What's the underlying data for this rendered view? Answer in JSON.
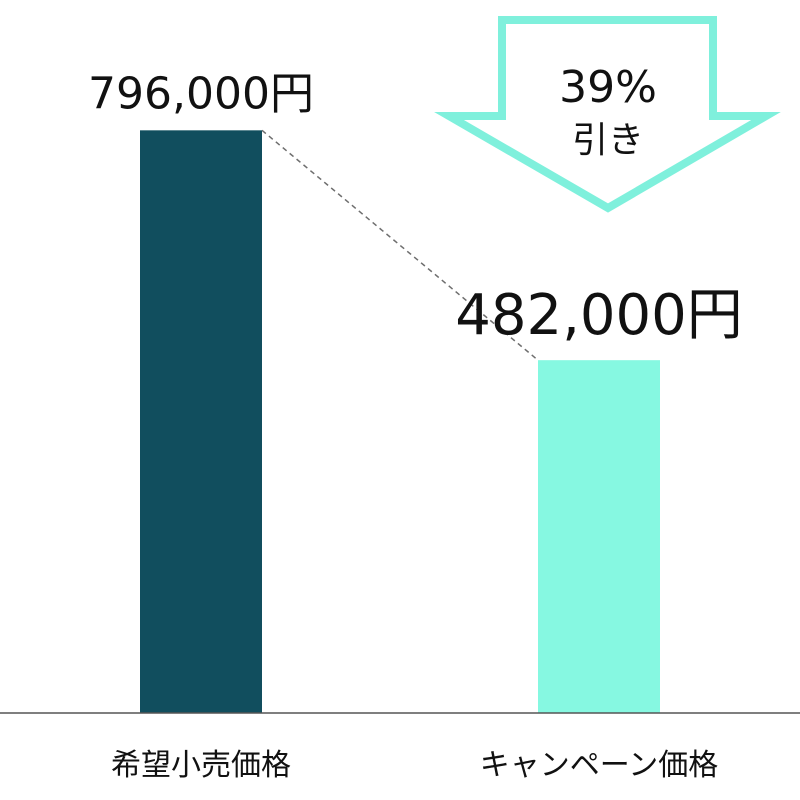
{
  "chart_data": {
    "type": "bar",
    "categories": [
      "希望小売価格",
      "キャンペーン価格"
    ],
    "values": [
      796000,
      482000
    ],
    "value_labels": [
      "796,000円",
      "482,000円"
    ],
    "ylim": [
      0,
      1000000
    ],
    "grid": false,
    "legend": "none",
    "colors": [
      "#114e5e",
      "#86f8e1"
    ],
    "annotation": {
      "percent": "39%",
      "text": "引き",
      "arrow_color": "#7ff0dc"
    }
  }
}
